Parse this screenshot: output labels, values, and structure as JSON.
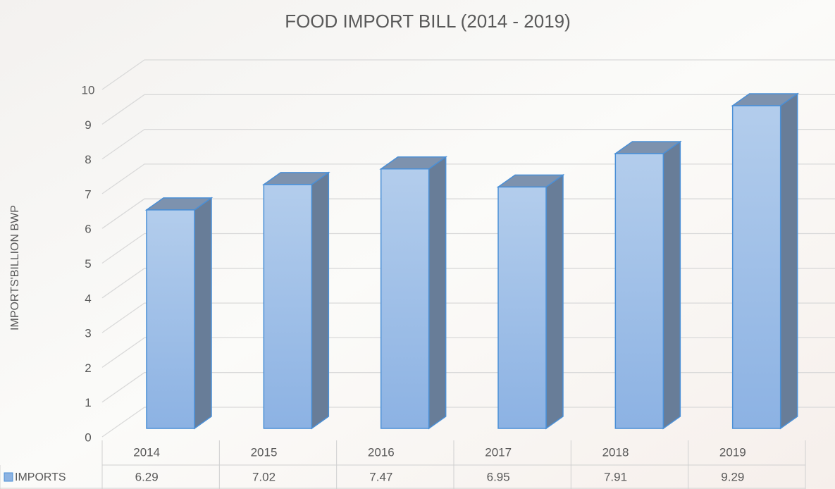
{
  "chart_data": {
    "type": "bar",
    "title": "FOOD IMPORT BILL (2014 - 2019)",
    "y_label": "IMPORTS'BILLION BWP",
    "categories": [
      "2014",
      "2015",
      "2016",
      "2017",
      "2018",
      "2019"
    ],
    "series": [
      {
        "name": "IMPORTS",
        "color": "#8db3e2",
        "values": [
          6.29,
          7.02,
          7.47,
          6.95,
          7.91,
          9.29
        ]
      }
    ],
    "ylim": [
      0,
      10
    ],
    "yticks": [
      0,
      1,
      2,
      3,
      4,
      5,
      6,
      7,
      8,
      9,
      10
    ],
    "grid": true,
    "data_table": true
  }
}
